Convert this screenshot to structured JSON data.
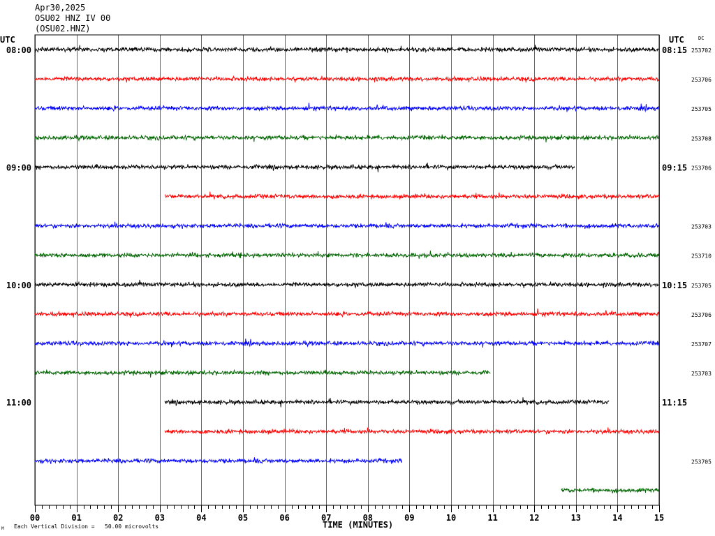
{
  "header": {
    "date": "Apr30,2025",
    "station_line": "OSU02 HNZ IV 00",
    "channel_code": "(OSU02.HNZ)"
  },
  "left_axis_title": "UTC",
  "right_axis_title": "UTC",
  "dc_label": "DC",
  "footer": {
    "scale_note": "Each Vertical Division =   50.00 microvolts",
    "corner_mark": "M"
  },
  "colors": {
    "black": "#000000",
    "red": "#ff0000",
    "blue": "#0000ff",
    "green": "#006400",
    "grid": "#000000"
  },
  "chart_data": {
    "type": "line",
    "subtype": "helicorder",
    "xlabel": "TIME (MINUTES)",
    "xlim": [
      0,
      15
    ],
    "x_ticks": [
      "00",
      "01",
      "02",
      "03",
      "04",
      "05",
      "06",
      "07",
      "08",
      "09",
      "10",
      "11",
      "12",
      "13",
      "14",
      "15"
    ],
    "rows": [
      {
        "left": "08:00",
        "right": "08:15",
        "dc": "253702",
        "color": "black",
        "start": 0,
        "end": 15
      },
      {
        "left": "",
        "right": "",
        "dc": "253706",
        "color": "red",
        "start": 0,
        "end": 15
      },
      {
        "left": "",
        "right": "",
        "dc": "253705",
        "color": "blue",
        "start": 0,
        "end": 15
      },
      {
        "left": "",
        "right": "",
        "dc": "253708",
        "color": "green",
        "start": 0,
        "end": 15
      },
      {
        "left": "09:00",
        "right": "09:15",
        "dc": "253706",
        "color": "black",
        "start": 0,
        "end": 12.97
      },
      {
        "left": "",
        "right": "",
        "dc": "",
        "color": "red",
        "start": 3.12,
        "end": 15
      },
      {
        "left": "",
        "right": "",
        "dc": "253703",
        "color": "blue",
        "start": 0,
        "end": 15
      },
      {
        "left": "",
        "right": "",
        "dc": "253710",
        "color": "green",
        "start": 0,
        "end": 15
      },
      {
        "left": "10:00",
        "right": "10:15",
        "dc": "253705",
        "color": "black",
        "start": 0,
        "end": 15
      },
      {
        "left": "",
        "right": "",
        "dc": "253706",
        "color": "red",
        "start": 0,
        "end": 15
      },
      {
        "left": "",
        "right": "",
        "dc": "253707",
        "color": "blue",
        "start": 0,
        "end": 15
      },
      {
        "left": "",
        "right": "",
        "dc": "253703",
        "color": "green",
        "start": 0,
        "end": 10.95
      },
      {
        "left": "11:00",
        "right": "11:15",
        "dc": "",
        "color": "black",
        "start": 3.12,
        "end": 13.8
      },
      {
        "left": "",
        "right": "",
        "dc": "",
        "color": "red",
        "start": 3.12,
        "end": 15
      },
      {
        "left": "",
        "right": "",
        "dc": "253705",
        "color": "blue",
        "start": 0,
        "end": 8.82
      },
      {
        "left": "",
        "right": "",
        "dc": "",
        "color": "green",
        "start": 12.65,
        "end": 15
      }
    ]
  }
}
